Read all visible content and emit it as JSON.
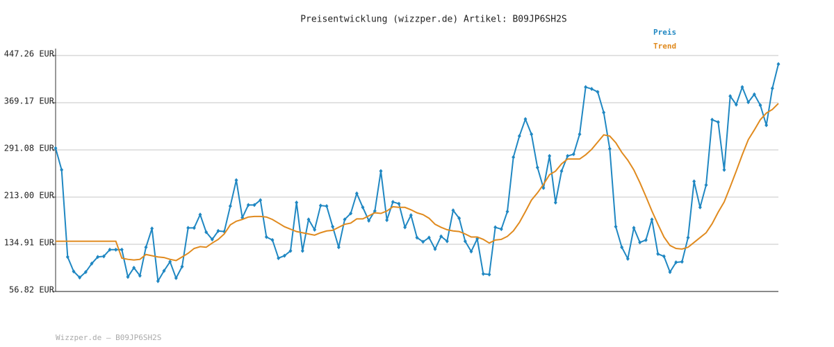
{
  "chart_data": {
    "type": "line",
    "title": "Preisentwicklung (wizzper.de) Artikel: B09JP6SH2S",
    "footer": "Wizzper.de – B09JP6SH2S",
    "ylim": [
      56.82,
      447.26
    ],
    "yticks": [
      {
        "value": 56.82,
        "label": "56.82 EUR"
      },
      {
        "value": 134.91,
        "label": "134.91 EUR"
      },
      {
        "value": 213.0,
        "label": "213.00 EUR"
      },
      {
        "value": 291.08,
        "label": "291.08 EUR"
      },
      {
        "value": 369.17,
        "label": "369.17 EUR"
      },
      {
        "value": 447.26,
        "label": "447.26 EUR"
      }
    ],
    "grid": true,
    "legend": "top-right",
    "series": [
      {
        "name": "Preis",
        "color": "#1f87c2",
        "markers": true,
        "values": [
          294,
          258,
          114,
          90,
          80,
          89,
          103,
          114,
          115,
          126,
          126,
          126,
          81,
          96,
          83,
          130,
          161,
          74,
          91,
          106,
          79,
          98,
          162,
          162,
          184,
          155,
          143,
          157,
          156,
          198,
          241,
          179,
          200,
          200,
          208,
          147,
          142,
          112,
          116,
          124,
          204,
          124,
          176,
          159,
          199,
          198,
          164,
          130,
          176,
          186,
          219,
          196,
          174,
          190,
          256,
          175,
          205,
          202,
          163,
          183,
          146,
          139,
          146,
          127,
          148,
          140,
          191,
          178,
          140,
          123,
          144,
          86,
          85,
          163,
          160,
          189,
          279,
          314,
          342,
          317,
          262,
          228,
          281,
          204,
          256,
          281,
          284,
          317,
          395,
          392,
          387,
          353,
          293,
          164,
          130,
          111,
          162,
          138,
          142,
          176,
          119,
          115,
          89,
          105,
          106,
          146,
          239,
          196,
          233,
          341,
          337,
          258,
          380,
          366,
          395,
          370,
          383,
          365,
          332,
          393,
          433
        ]
      },
      {
        "name": "Trend",
        "color": "#e08a1e",
        "markers": false,
        "values": [
          140,
          140,
          140,
          140,
          140,
          140,
          140,
          140,
          140,
          140,
          140,
          112,
          110,
          109,
          110,
          118,
          116,
          114,
          113,
          110,
          108,
          114,
          120,
          128,
          131,
          130,
          137,
          143,
          152,
          167,
          173,
          176,
          180,
          181,
          181,
          180,
          176,
          170,
          164,
          160,
          156,
          154,
          152,
          150,
          154,
          157,
          158,
          163,
          168,
          170,
          177,
          177,
          182,
          187,
          186,
          190,
          197,
          196,
          196,
          192,
          187,
          184,
          178,
          168,
          163,
          159,
          157,
          156,
          152,
          147,
          147,
          143,
          137,
          142,
          143,
          148,
          157,
          171,
          189,
          208,
          220,
          234,
          250,
          256,
          268,
          276,
          276,
          276,
          283,
          292,
          304,
          316,
          314,
          303,
          287,
          274,
          258,
          237,
          214,
          190,
          168,
          147,
          133,
          128,
          127,
          130,
          138,
          146,
          154,
          169,
          188,
          205,
          230,
          256,
          283,
          308,
          324,
          341,
          352,
          358,
          368
        ]
      }
    ]
  }
}
